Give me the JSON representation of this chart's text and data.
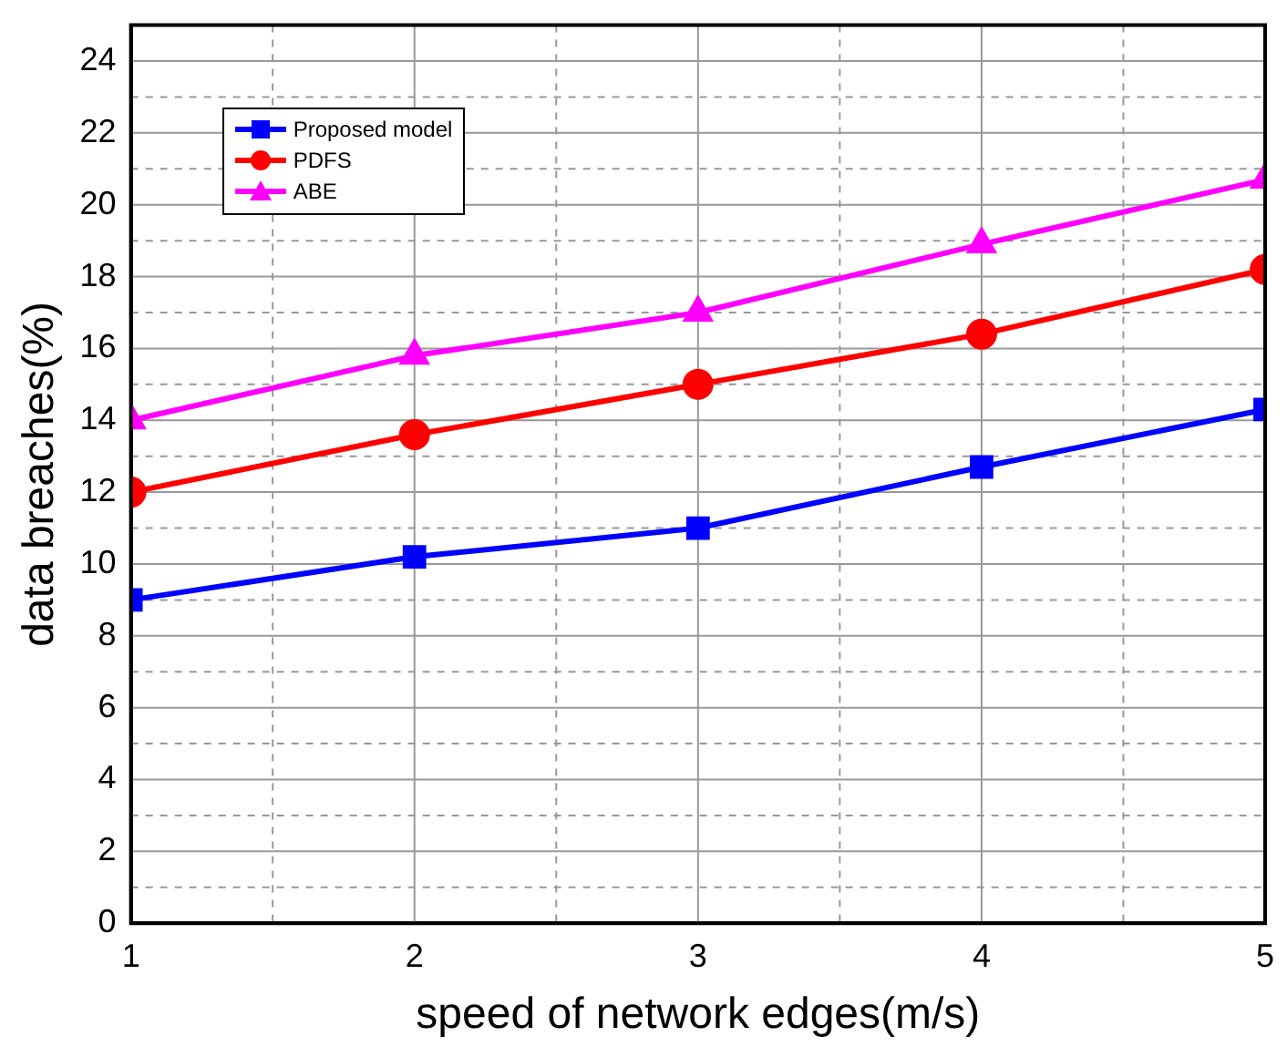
{
  "chart_data": {
    "type": "line",
    "xlabel": "speed of network edges(m/s)",
    "ylabel": "data breaches(%)",
    "x": [
      1,
      2,
      3,
      4,
      5
    ],
    "series": [
      {
        "name": "Proposed model",
        "color": "#0000ff",
        "marker": "square",
        "values": [
          9,
          10.2,
          11,
          12.7,
          14.3
        ]
      },
      {
        "name": "PDFS",
        "color": "#ff0000",
        "marker": "circle",
        "values": [
          12,
          13.6,
          15,
          16.4,
          18.2
        ]
      },
      {
        "name": "ABE",
        "color": "#ff00ff",
        "marker": "triangle",
        "values": [
          14,
          15.8,
          17,
          18.9,
          20.7
        ]
      }
    ],
    "xlim": [
      1,
      5
    ],
    "xticks": [
      1,
      {
        "value": 1.5,
        "label": null
      },
      2,
      {
        "value": 2.5,
        "label": null
      },
      3,
      {
        "value": 3.5,
        "label": null
      },
      4,
      {
        "value": 4.5,
        "label": null
      },
      5
    ],
    "ylim": [
      0,
      25
    ],
    "yticks": [
      0,
      {
        "value": 1,
        "label": null
      },
      2,
      {
        "value": 3,
        "label": null
      },
      4,
      {
        "value": 5,
        "label": null
      },
      6,
      {
        "value": 7,
        "label": null
      },
      8,
      {
        "value": 9,
        "label": null
      },
      10,
      {
        "value": 11,
        "label": null
      },
      12,
      {
        "value": 13,
        "label": null
      },
      14,
      {
        "value": 15,
        "label": null
      },
      16,
      {
        "value": 17,
        "label": null
      },
      18,
      {
        "value": 19,
        "label": null
      },
      20,
      {
        "value": 21,
        "label": null
      },
      22,
      {
        "value": 23,
        "label": null
      },
      24
    ],
    "grid": true,
    "legend": "top left",
    "line_style": "solid"
  }
}
